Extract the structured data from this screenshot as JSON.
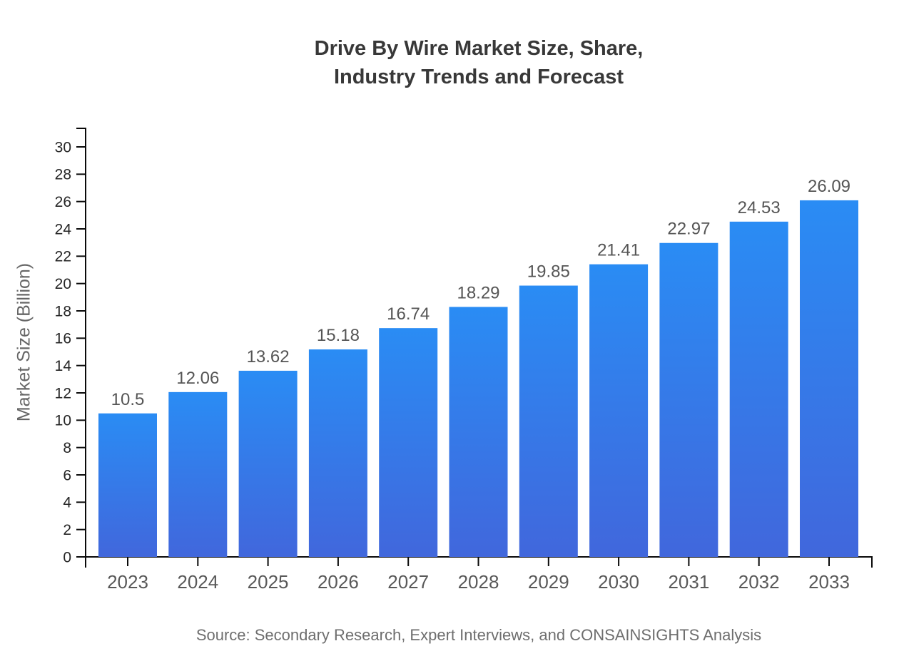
{
  "title": {
    "line1": "Drive By Wire Market Size, Share,",
    "line2": "Industry Trends and Forecast"
  },
  "source": "Source: Secondary Research, Expert Interviews, and CONSAINSIGHTS Analysis",
  "chart_data": {
    "type": "bar",
    "title": "Drive By Wire Market Size, Share, Industry Trends and Forecast",
    "categories": [
      "2023",
      "2024",
      "2025",
      "2026",
      "2027",
      "2028",
      "2029",
      "2030",
      "2031",
      "2032",
      "2033"
    ],
    "values": [
      10.5,
      12.06,
      13.62,
      15.18,
      16.74,
      18.29,
      19.85,
      21.41,
      22.97,
      24.53,
      26.09
    ],
    "value_labels": [
      "10.5",
      "12.06",
      "13.62",
      "15.18",
      "16.74",
      "18.29",
      "19.85",
      "21.41",
      "22.97",
      "24.53",
      "26.09"
    ],
    "xlabel": "",
    "ylabel": "Market Size (Billion)",
    "ylim": [
      0,
      30
    ],
    "ytick_step": 2,
    "grid": false,
    "legend_position": "none",
    "colors": {
      "bar_gradient_top": "#2A8CF4",
      "bar_gradient_bottom": "#4167DC",
      "axis_line": "#0a0a0a",
      "title_text": "#383838",
      "ytick_text": "#262626",
      "xtick_text": "#595959",
      "value_label_text": "#555555",
      "axis_title_text": "#666666",
      "source_text": "#6E6E6E"
    }
  }
}
